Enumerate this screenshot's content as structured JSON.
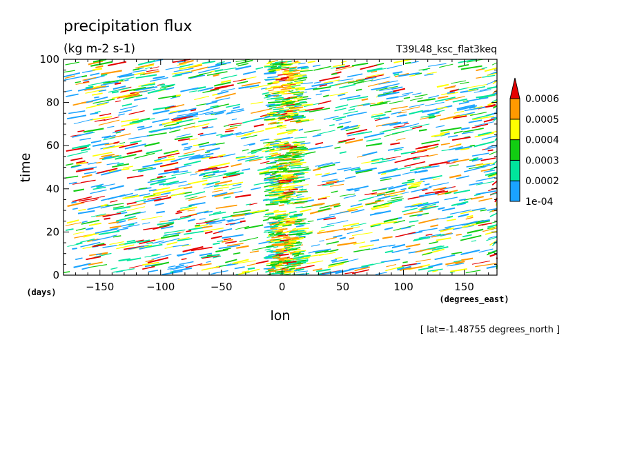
{
  "chart_data": {
    "type": "heatmap",
    "title": "precipitation flux",
    "units": "(kg m-2 s-1)",
    "run_label": "T39L48_ksc_flat3keq",
    "xlabel": "lon",
    "x_units": "(degrees_east)",
    "ylabel": "time",
    "y_units": "(days)",
    "footnote": "[ lat=-1.48755 degrees_north ]",
    "xlim": [
      -180,
      177
    ],
    "ylim": [
      0,
      100
    ],
    "x_ticks": [
      -150,
      -100,
      -50,
      0,
      50,
      100,
      150
    ],
    "x_tick_labels": [
      "−150",
      "−100",
      "−50",
      "0",
      "50",
      "100",
      "150"
    ],
    "y_ticks": [
      0,
      20,
      40,
      60,
      80,
      100
    ],
    "y_tick_labels": [
      "0",
      "20",
      "40",
      "60",
      "80",
      "100"
    ],
    "colorbar": {
      "levels": [
        0.0001,
        0.0002,
        0.0003,
        0.0004,
        0.0005,
        0.0006
      ],
      "level_labels": [
        "1e-04",
        "0.0002",
        "0.0003",
        "0.0004",
        "0.0005",
        "0.0006"
      ],
      "colors": [
        "#1aa3ff",
        "#00e59c",
        "#12cc12",
        "#ffff00",
        "#ff9900",
        "#e60000"
      ],
      "extend": "max"
    },
    "features": [
      {
        "description": "strong stationary convective band",
        "lon": 0,
        "time": [
          0,
          100
        ]
      },
      {
        "description": "eastward-propagating streaks",
        "lon": [
          -180,
          177
        ],
        "time": [
          0,
          100
        ]
      }
    ]
  }
}
